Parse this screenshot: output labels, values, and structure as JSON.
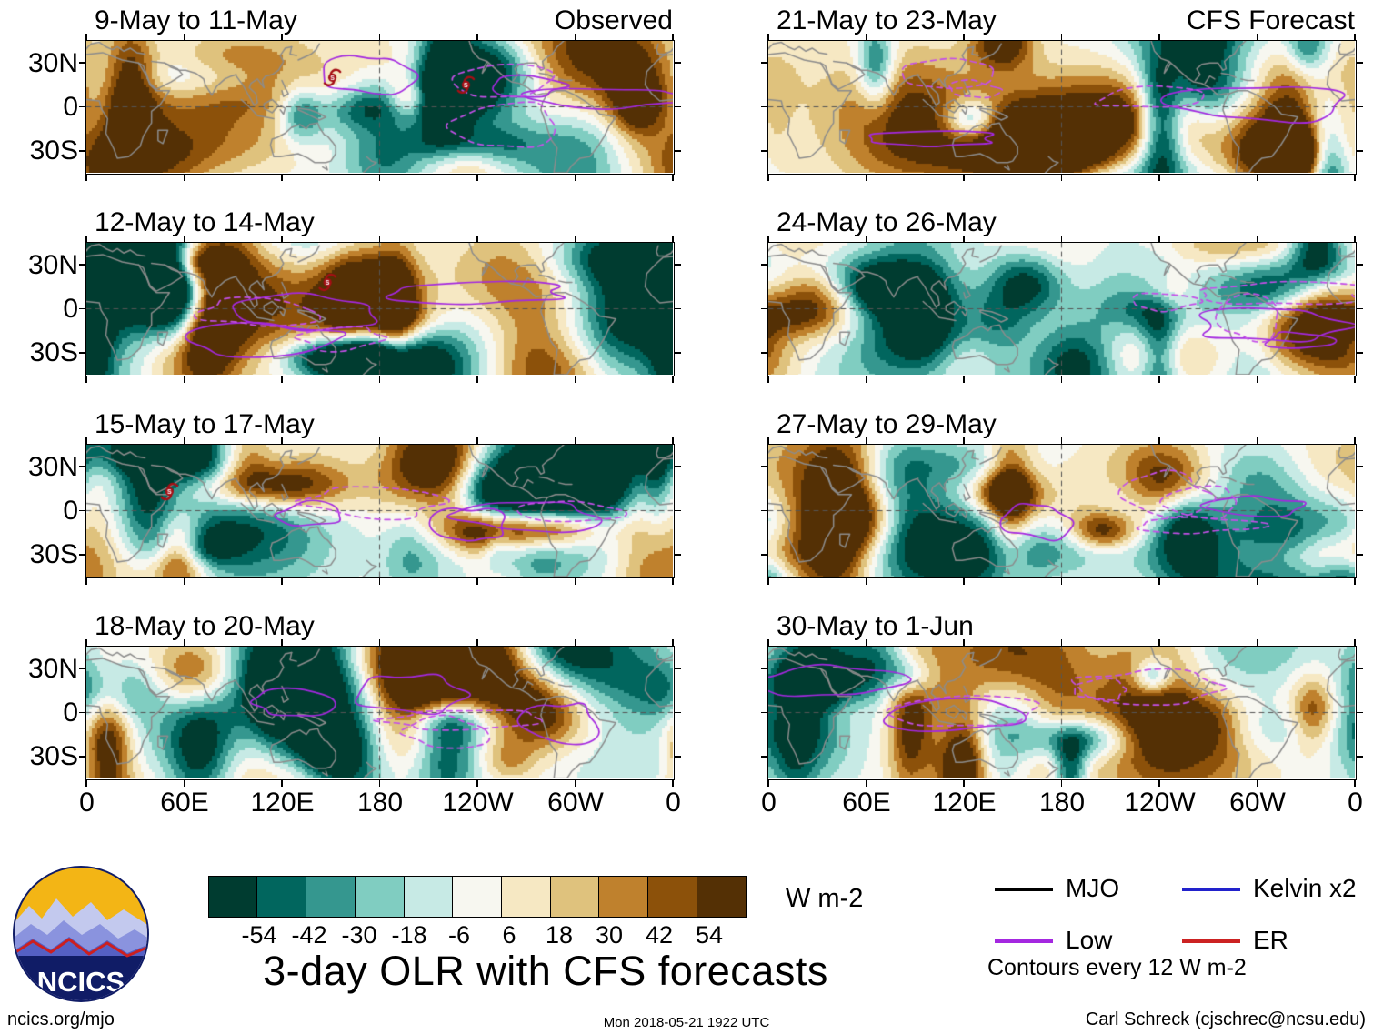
{
  "figure": {
    "main_title": "3-day OLR with CFS forecasts",
    "logo_text": "NCICS",
    "footer": {
      "left": "ncics.org/mjo",
      "center": "Mon 2018-05-21 1922 UTC",
      "right": "Carl Schreck (cjschrec@ncsu.edu)"
    }
  },
  "chart_data": {
    "type": "heatmap",
    "title": "3-day OLR with CFS forecasts",
    "description": "Eight longitude-latitude panels of 3-day mean OLR anomalies (shaded, W m-2): observed periods in the left column, CFS forecast periods in the right column, overlaid with filtered-wave contours (MJO, Low, Kelvin x2, ER) every 12 W m-2 and tropical-cyclone symbols.",
    "columns": [
      {
        "label": "Observed"
      },
      {
        "label": "CFS Forecast"
      }
    ],
    "panels": [
      {
        "title": "9-May to 11-May",
        "column": "Observed",
        "cyclones": [
          {
            "lon": 151,
            "lat": 20
          },
          {
            "lon": 233,
            "lat": 15
          }
        ]
      },
      {
        "title": "12-May to 14-May",
        "column": "Observed",
        "cyclones": [
          {
            "lon": 148,
            "lat": 18
          }
        ]
      },
      {
        "title": "15-May to 17-May",
        "column": "Observed",
        "cyclones": [
          {
            "lon": 51,
            "lat": 13
          }
        ]
      },
      {
        "title": "18-May to 20-May",
        "column": "Observed",
        "cyclones": []
      },
      {
        "title": "21-May to 23-May",
        "column": "CFS Forecast",
        "cyclones": []
      },
      {
        "title": "24-May to 26-May",
        "column": "CFS Forecast",
        "cyclones": []
      },
      {
        "title": "27-May to 29-May",
        "column": "CFS Forecast",
        "cyclones": []
      },
      {
        "title": "30-May to 1-Jun",
        "column": "CFS Forecast",
        "cyclones": []
      }
    ],
    "x_ticks": [
      "0",
      "60E",
      "120E",
      "180",
      "120W",
      "60W",
      "0"
    ],
    "y_ticks": [
      "30N",
      "0",
      "30S"
    ],
    "lon_range_deg": [
      0,
      360
    ],
    "lat_range_deg": [
      -45,
      45
    ],
    "colorbar": {
      "levels": [
        -54,
        -42,
        -30,
        -18,
        -6,
        6,
        18,
        30,
        42,
        54
      ],
      "colors": [
        "#003c30",
        "#01665e",
        "#35978f",
        "#80cdc1",
        "#c7eae5",
        "#f7f7f0",
        "#f6e8c3",
        "#dfc27d",
        "#bf812d",
        "#8c510a",
        "#543005"
      ],
      "units": "W m-2"
    },
    "legend": [
      {
        "label": "MJO",
        "color": "#000000",
        "style": "solid"
      },
      {
        "label": "Low",
        "color": "#a428e0",
        "style": "solid"
      },
      {
        "label": "Kelvin x2",
        "color": "#2222cc",
        "style": "solid"
      },
      {
        "label": "ER",
        "color": "#cc2222",
        "style": "solid"
      }
    ],
    "contour_note": "Contours every 12 W m-2"
  }
}
